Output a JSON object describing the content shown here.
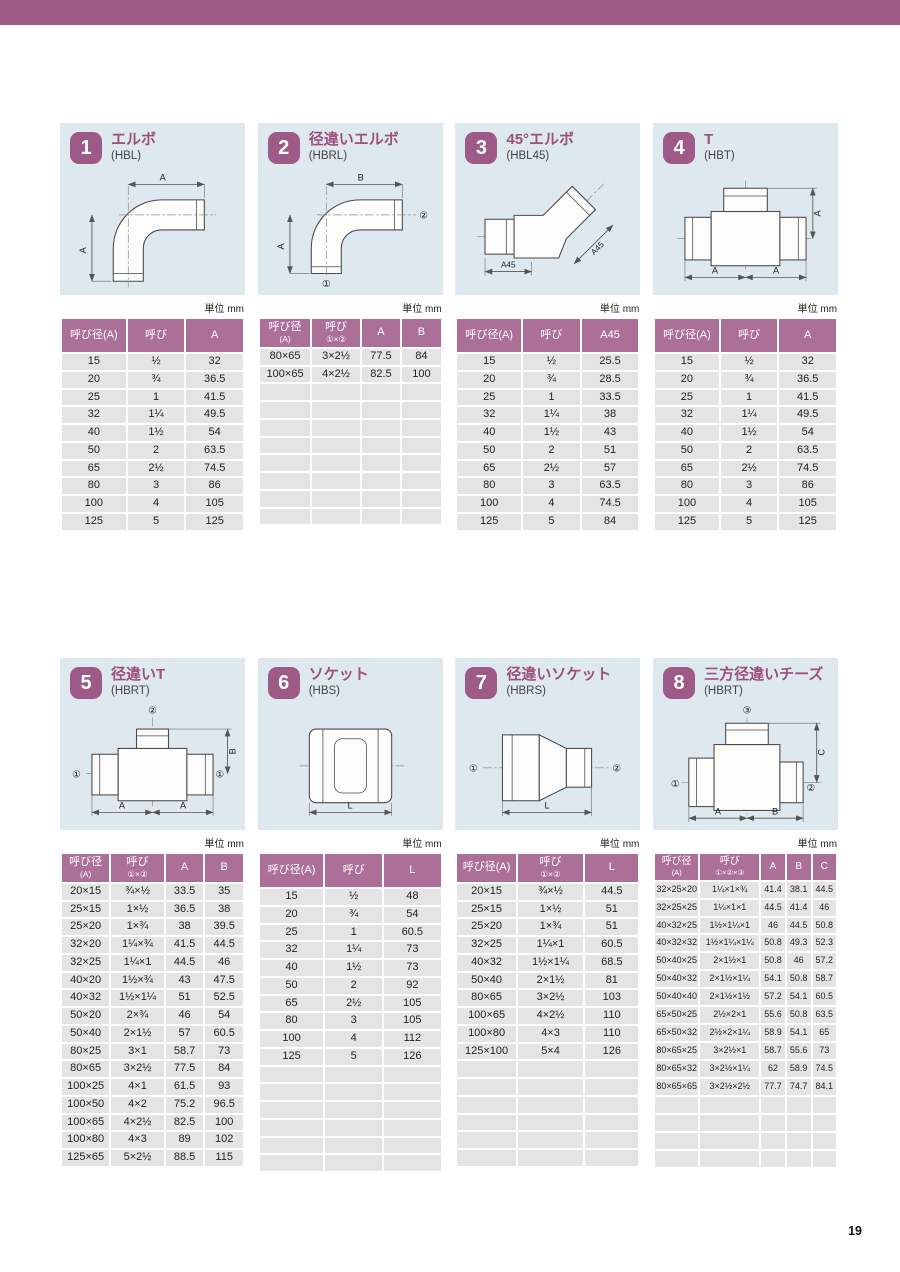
{
  "page": {
    "page_number": "19",
    "colors": {
      "top_bar": "#9c5b86",
      "badge": "#9d5a87",
      "table_header": "#ab6f98",
      "panel_background": "#dde9ef",
      "row_background": "#e4e4e4",
      "title_text": "#9d4f7e"
    }
  },
  "sections": [
    {
      "number": "1",
      "title": "エルボ",
      "code": "(HBL)",
      "unit": "単位 mm",
      "diagram": {
        "labels": [
          "A",
          "A"
        ]
      },
      "table": {
        "headers": [
          {
            "l1": "呼び径(A)"
          },
          {
            "l1": "呼び"
          },
          {
            "l1": "A"
          }
        ],
        "rows": [
          [
            "15",
            "½",
            "32"
          ],
          [
            "20",
            "¾",
            "36.5"
          ],
          [
            "25",
            "1",
            "41.5"
          ],
          [
            "32",
            "1¼",
            "49.5"
          ],
          [
            "40",
            "1½",
            "54"
          ],
          [
            "50",
            "2",
            "63.5"
          ],
          [
            "65",
            "2½",
            "74.5"
          ],
          [
            "80",
            "3",
            "86"
          ],
          [
            "100",
            "4",
            "105"
          ],
          [
            "125",
            "5",
            "125"
          ]
        ],
        "empty_rows": 0
      }
    },
    {
      "number": "2",
      "title": "径違いエルボ",
      "code": "(HBRL)",
      "unit": "単位 mm",
      "diagram": {
        "labels": [
          "B",
          "A",
          "②",
          "①"
        ]
      },
      "table": {
        "headers": [
          {
            "l1": "呼び径",
            "l2": "(A)"
          },
          {
            "l1": "呼び",
            "l2": "①×②"
          },
          {
            "l1": "A"
          },
          {
            "l1": "B"
          }
        ],
        "rows": [
          [
            "80×65",
            "3×2½",
            "77.5",
            "84"
          ],
          [
            "100×65",
            "4×2½",
            "82.5",
            "100"
          ]
        ],
        "empty_rows": 8
      }
    },
    {
      "number": "3",
      "title": "45°エルボ",
      "code": "(HBL45)",
      "unit": "単位 mm",
      "diagram": {
        "labels": [
          "A45",
          "A45"
        ]
      },
      "table": {
        "headers": [
          {
            "l1": "呼び径(A)"
          },
          {
            "l1": "呼び"
          },
          {
            "l1": "A45"
          }
        ],
        "rows": [
          [
            "15",
            "½",
            "25.5"
          ],
          [
            "20",
            "¾",
            "28.5"
          ],
          [
            "25",
            "1",
            "33.5"
          ],
          [
            "32",
            "1¼",
            "38"
          ],
          [
            "40",
            "1½",
            "43"
          ],
          [
            "50",
            "2",
            "51"
          ],
          [
            "65",
            "2½",
            "57"
          ],
          [
            "80",
            "3",
            "63.5"
          ],
          [
            "100",
            "4",
            "74.5"
          ],
          [
            "125",
            "5",
            "84"
          ]
        ],
        "empty_rows": 0
      }
    },
    {
      "number": "4",
      "title": "T",
      "code": "(HBT)",
      "unit": "単位 mm",
      "diagram": {
        "labels": [
          "A",
          "A",
          "A"
        ]
      },
      "table": {
        "headers": [
          {
            "l1": "呼び径(A)"
          },
          {
            "l1": "呼び"
          },
          {
            "l1": "A"
          }
        ],
        "rows": [
          [
            "15",
            "½",
            "32"
          ],
          [
            "20",
            "¾",
            "36.5"
          ],
          [
            "25",
            "1",
            "41.5"
          ],
          [
            "32",
            "1¼",
            "49.5"
          ],
          [
            "40",
            "1½",
            "54"
          ],
          [
            "50",
            "2",
            "63.5"
          ],
          [
            "65",
            "2½",
            "74.5"
          ],
          [
            "80",
            "3",
            "86"
          ],
          [
            "100",
            "4",
            "105"
          ],
          [
            "125",
            "5",
            "125"
          ]
        ],
        "empty_rows": 0
      }
    },
    {
      "number": "5",
      "title": "径違いT",
      "code": "(HBRT)",
      "unit": "単位 mm",
      "diagram": {
        "labels": [
          "②",
          "①",
          "①",
          "B",
          "A",
          "A"
        ]
      },
      "table": {
        "headers": [
          {
            "l1": "呼び径",
            "l2": "(A)"
          },
          {
            "l1": "呼び",
            "l2": "①×②"
          },
          {
            "l1": "A"
          },
          {
            "l1": "B"
          }
        ],
        "rows": [
          [
            "20×15",
            "¾×½",
            "33.5",
            "35"
          ],
          [
            "25×15",
            "1×½",
            "36.5",
            "38"
          ],
          [
            "25×20",
            "1×¾",
            "38",
            "39.5"
          ],
          [
            "32×20",
            "1¼×¾",
            "41.5",
            "44.5"
          ],
          [
            "32×25",
            "1¼×1",
            "44.5",
            "46"
          ],
          [
            "40×20",
            "1½×¾",
            "43",
            "47.5"
          ],
          [
            "40×32",
            "1½×1¼",
            "51",
            "52.5"
          ],
          [
            "50×20",
            "2×¾",
            "46",
            "54"
          ],
          [
            "50×40",
            "2×1½",
            "57",
            "60.5"
          ],
          [
            "80×25",
            "3×1",
            "58.7",
            "73"
          ],
          [
            "80×65",
            "3×2½",
            "77.5",
            "84"
          ],
          [
            "100×25",
            "4×1",
            "61.5",
            "93"
          ],
          [
            "100×50",
            "4×2",
            "75.2",
            "96.5"
          ],
          [
            "100×65",
            "4×2½",
            "82.5",
            "100"
          ],
          [
            "100×80",
            "4×3",
            "89",
            "102"
          ],
          [
            "125×65",
            "5×2½",
            "88.5",
            "115"
          ]
        ],
        "empty_rows": 0
      }
    },
    {
      "number": "6",
      "title": "ソケット",
      "code": "(HBS)",
      "unit": "単位 mm",
      "diagram": {
        "labels": [
          "L"
        ]
      },
      "table": {
        "headers": [
          {
            "l1": "呼び径(A)"
          },
          {
            "l1": "呼び"
          },
          {
            "l1": "L"
          }
        ],
        "rows": [
          [
            "15",
            "½",
            "48"
          ],
          [
            "20",
            "¾",
            "54"
          ],
          [
            "25",
            "1",
            "60.5"
          ],
          [
            "32",
            "1¼",
            "73"
          ],
          [
            "40",
            "1½",
            "73"
          ],
          [
            "50",
            "2",
            "92"
          ],
          [
            "65",
            "2½",
            "105"
          ],
          [
            "80",
            "3",
            "105"
          ],
          [
            "100",
            "4",
            "112"
          ],
          [
            "125",
            "5",
            "126"
          ]
        ],
        "empty_rows": 6
      }
    },
    {
      "number": "7",
      "title": "径違いソケット",
      "code": "(HBRS)",
      "unit": "単位 mm",
      "diagram": {
        "labels": [
          "①",
          "②",
          "L"
        ]
      },
      "table": {
        "headers": [
          {
            "l1": "呼び径(A)"
          },
          {
            "l1": "呼び",
            "l2": "①×②"
          },
          {
            "l1": "L"
          }
        ],
        "rows": [
          [
            "20×15",
            "¾×½",
            "44.5"
          ],
          [
            "25×15",
            "1×½",
            "51"
          ],
          [
            "25×20",
            "1×¾",
            "51"
          ],
          [
            "32×25",
            "1¼×1",
            "60.5"
          ],
          [
            "40×32",
            "1½×1¼",
            "68.5"
          ],
          [
            "50×40",
            "2×1½",
            "81"
          ],
          [
            "80×65",
            "3×2½",
            "103"
          ],
          [
            "100×65",
            "4×2½",
            "110"
          ],
          [
            "100×80",
            "4×3",
            "110"
          ],
          [
            "125×100",
            "5×4",
            "126"
          ]
        ],
        "empty_rows": 6
      }
    },
    {
      "number": "8",
      "title": "三方径違いチーズ",
      "code": "(HBRT)",
      "unit": "単位 mm",
      "diagram": {
        "labels": [
          "③",
          "①",
          "②",
          "C",
          "A",
          "B"
        ]
      },
      "table": {
        "headers": [
          {
            "l1": "呼び径",
            "l2": "(A)"
          },
          {
            "l1": "呼び",
            "l2": "①×②×③"
          },
          {
            "l1": "A"
          },
          {
            "l1": "B"
          },
          {
            "l1": "C"
          }
        ],
        "rows": [
          [
            "32×25×20",
            "1¼×1×¾",
            "41.4",
            "38.1",
            "44.5"
          ],
          [
            "32×25×25",
            "1¼×1×1",
            "44.5",
            "41.4",
            "46"
          ],
          [
            "40×32×25",
            "1½×1¼×1",
            "46",
            "44.5",
            "50.8"
          ],
          [
            "40×32×32",
            "1½×1¼×1¼",
            "50.8",
            "49.3",
            "52.3"
          ],
          [
            "50×40×25",
            "2×1½×1",
            "50.8",
            "46",
            "57.2"
          ],
          [
            "50×40×32",
            "2×1½×1¼",
            "54.1",
            "50.8",
            "58.7"
          ],
          [
            "50×40×40",
            "2×1½×1½",
            "57.2",
            "54.1",
            "60.5"
          ],
          [
            "65×50×25",
            "2½×2×1",
            "55.6",
            "50.8",
            "63.5"
          ],
          [
            "65×50×32",
            "2½×2×1¼",
            "58.9",
            "54.1",
            "65"
          ],
          [
            "80×65×25",
            "3×2½×1",
            "58.7",
            "55.6",
            "73"
          ],
          [
            "80×65×32",
            "3×2½×1¼",
            "62",
            "58.9",
            "74.5"
          ],
          [
            "80×65×65",
            "3×2½×2½",
            "77.7",
            "74.7",
            "84.1"
          ]
        ],
        "empty_rows": 4
      }
    }
  ]
}
